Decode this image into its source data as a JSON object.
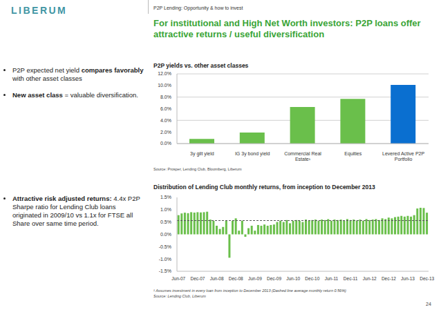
{
  "logo": "LIBERUM",
  "header": "P2P Lending: Opportunity & how to invest",
  "title": "For institutional and High Net Worth investors: P2P loans offer attractive returns / useful diversification",
  "bullet_groups": [
    [
      [
        {
          "text": "P2P expected net yield ",
          "bold": false
        },
        {
          "text": "compares favorably",
          "bold": true
        },
        {
          "text": " with other asset classes",
          "bold": false
        }
      ],
      [
        {
          "text": "New asset class",
          "bold": true
        },
        {
          "text": " = valuable diversification.",
          "bold": false
        }
      ]
    ],
    [
      [
        {
          "text": "Attractive risk adjusted returns:",
          "bold": true
        },
        {
          "text": " 4.4x P2P Sharpe ratio for Lending Club loans originated in 2009/10 vs 1.1x for FTSE all Share over same time period.",
          "bold": false
        }
      ]
    ]
  ],
  "chart_data": [
    {
      "type": "bar",
      "title": "P2P yields vs. other asset classes",
      "categories": [
        "3y gilt yield",
        "IG 3y bond yield",
        "Commercial Real Estate¹",
        "Equities",
        "Levered Active P2P Portfolio"
      ],
      "values": [
        0.8,
        1.9,
        6.3,
        7.7,
        10.1
      ],
      "colors": [
        "#6abf4b",
        "#6abf4b",
        "#6abf4b",
        "#6abf4b",
        "#0a6fd0"
      ],
      "ylim": [
        0,
        12
      ],
      "yticks": [
        {
          "value": 0,
          "label": "0.0%"
        },
        {
          "value": 2,
          "label": "2.0%"
        },
        {
          "value": 4,
          "label": "4.0%"
        },
        {
          "value": 6,
          "label": "6.0%"
        },
        {
          "value": 8,
          "label": "8.0%"
        },
        {
          "value": 10,
          "label": "10.0%"
        },
        {
          "value": 12,
          "label": "12.0%"
        }
      ],
      "grid": true,
      "source": "Source: Prosper, Lending Club, Bloomberg, Liberum"
    },
    {
      "type": "bar",
      "title": "Distribution of Lending Club monthly returns, from inception to December 2013",
      "categories": [
        "Jun-07",
        null,
        null,
        null,
        null,
        null,
        "Dec-07",
        null,
        null,
        null,
        null,
        null,
        "Jun-08",
        null,
        null,
        null,
        null,
        null,
        "Dec-08",
        null,
        null,
        null,
        null,
        null,
        "Jun-09",
        null,
        null,
        null,
        null,
        null,
        "Dec-09",
        null,
        null,
        null,
        null,
        null,
        "Jun-10",
        null,
        null,
        null,
        null,
        null,
        "Dec-10",
        null,
        null,
        null,
        null,
        null,
        "Jun-11",
        null,
        null,
        null,
        null,
        null,
        "Dec-11",
        null,
        null,
        null,
        null,
        null,
        "Jun-12",
        null,
        null,
        null,
        null,
        null,
        "Dec-12",
        null,
        null,
        null,
        null,
        null,
        "Jun-13",
        null,
        null,
        null,
        null,
        null,
        "Dec-13"
      ],
      "values": [
        0.78,
        0.85,
        0.88,
        0.86,
        0.9,
        0.88,
        0.9,
        0.89,
        0.9,
        0.92,
        0.6,
        0.55,
        0.35,
        0.22,
        0.3,
        0.55,
        -0.95,
        0.55,
        0.65,
        0.15,
        0.55,
        -0.1,
        0.25,
        0.35,
        0.15,
        0.38,
        0.35,
        0.4,
        0.35,
        0.38,
        0.4,
        0.5,
        0.55,
        0.5,
        0.58,
        0.45,
        0.55,
        0.58,
        0.55,
        0.5,
        0.6,
        0.55,
        0.58,
        0.6,
        0.55,
        0.6,
        0.58,
        0.62,
        0.55,
        0.6,
        0.58,
        0.6,
        0.55,
        0.62,
        0.58,
        0.6,
        0.56,
        0.6,
        0.55,
        0.62,
        0.58,
        0.6,
        0.62,
        0.58,
        0.65,
        0.62,
        0.68,
        0.65,
        0.7,
        0.72,
        0.75,
        0.72,
        0.75,
        0.72,
        0.78,
        1.05,
        1.08,
        1.07,
        0.88
      ],
      "color": "#6abf4b",
      "average": 0.56,
      "ylim": [
        -1.5,
        1.5
      ],
      "yticks": [
        {
          "value": -1.5,
          "label": "-1.5%"
        },
        {
          "value": -1,
          "label": "-1.0%"
        },
        {
          "value": -0.5,
          "label": "-0.5%"
        },
        {
          "value": 0,
          "label": "0.0%"
        },
        {
          "value": 0.5,
          "label": "0.5%"
        },
        {
          "value": 1,
          "label": "1.0%"
        },
        {
          "value": 1.5,
          "label": "1.5%"
        }
      ],
      "grid": false,
      "footnote": "¹ Assumes investment in every loan from inception to December 2013 (Dashed line average monthly return 0.56%)",
      "source": "Source: Lending Club, Liberum"
    }
  ],
  "page": "24"
}
